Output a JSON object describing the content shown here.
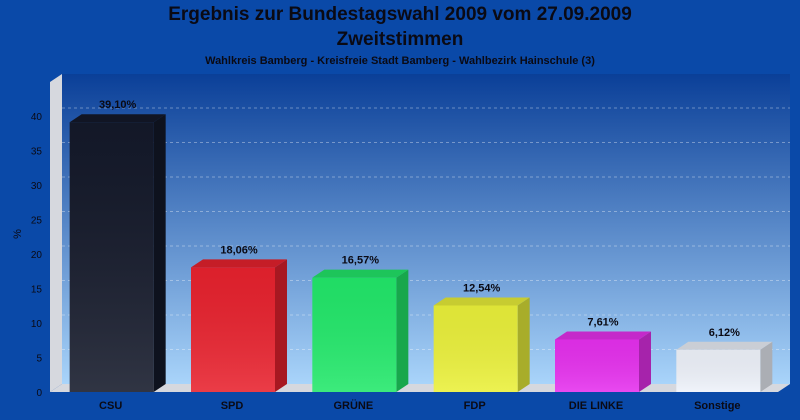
{
  "chart_data": {
    "type": "bar",
    "title": "Ergebnis zur Bundestagswahl 2009 vom 27.09.2009",
    "subtitle": "Zweitstimmen",
    "caption": "Wahlkreis Bamberg - Kreisfreie Stadt Bamberg - Wahlbezirk Hainschule (3)",
    "ylabel": "%",
    "ylim": [
      0,
      44
    ],
    "yticks": [
      0,
      5,
      10,
      15,
      20,
      25,
      30,
      35,
      40
    ],
    "grid": true,
    "categories": [
      "CSU",
      "SPD",
      "GRÜNE",
      "FDP",
      "DIE LINKE",
      "Sonstige"
    ],
    "values": [
      39.1,
      18.06,
      16.57,
      12.54,
      7.61,
      6.12
    ],
    "value_labels": [
      "39,10%",
      "18,06%",
      "16,57%",
      "12,54%",
      "7,61%",
      "6,12%"
    ],
    "colors": [
      "#14192a",
      "#e8222e",
      "#22e86a",
      "#eaf03a",
      "#e630ee",
      "#eef2fa"
    ],
    "background": "#0a49a8"
  }
}
